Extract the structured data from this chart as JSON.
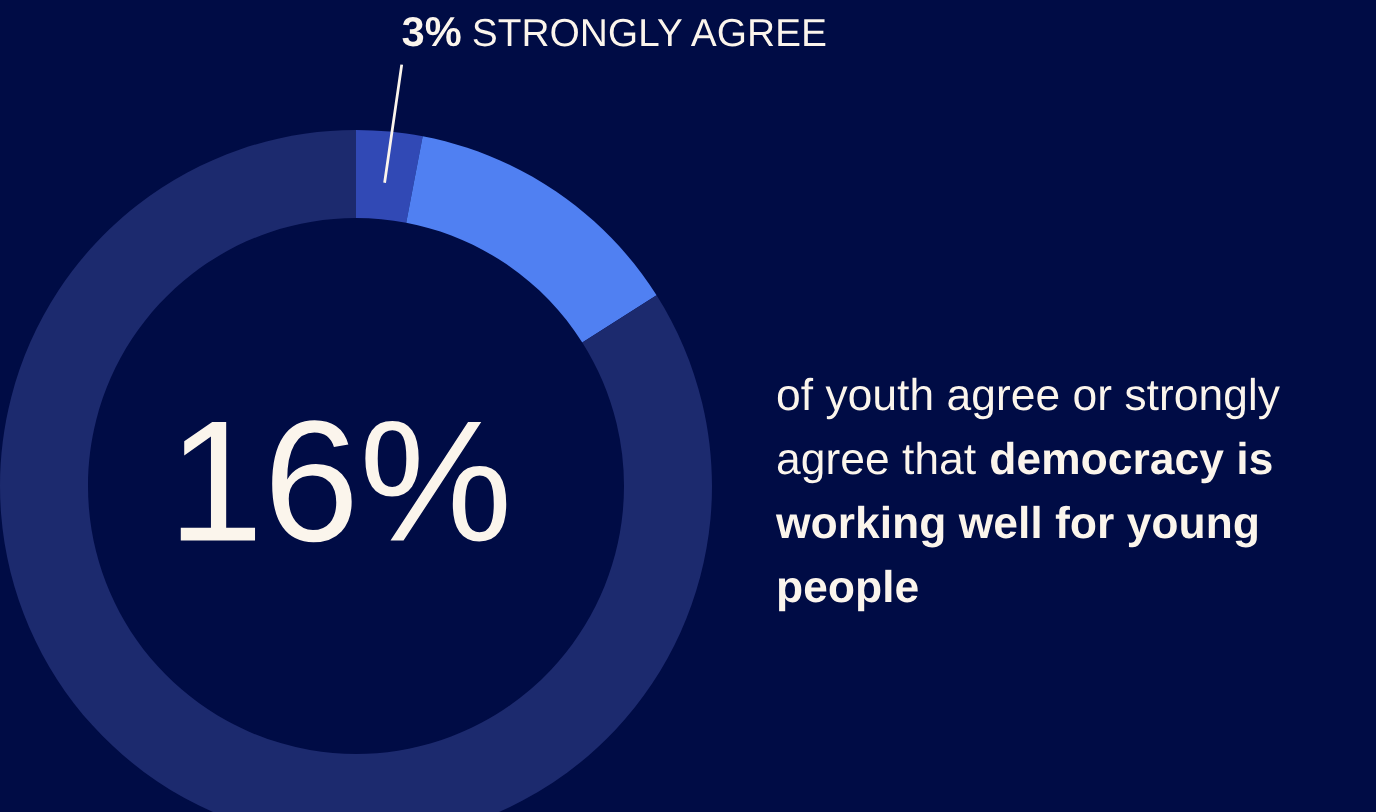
{
  "chart_data": {
    "type": "donut",
    "categories": [
      "STRONGLY AGREE",
      null,
      null
    ],
    "values": [
      3,
      13,
      84
    ],
    "colors": [
      "#3149b5",
      "#5080f2",
      "#1c2a6e"
    ],
    "value_labels": [
      "3%",
      null,
      null
    ],
    "annotations": [
      "16%",
      "of youth agree or strongly\nagree that",
      "democracy is\nworking well for young\npeople"
    ]
  }
}
